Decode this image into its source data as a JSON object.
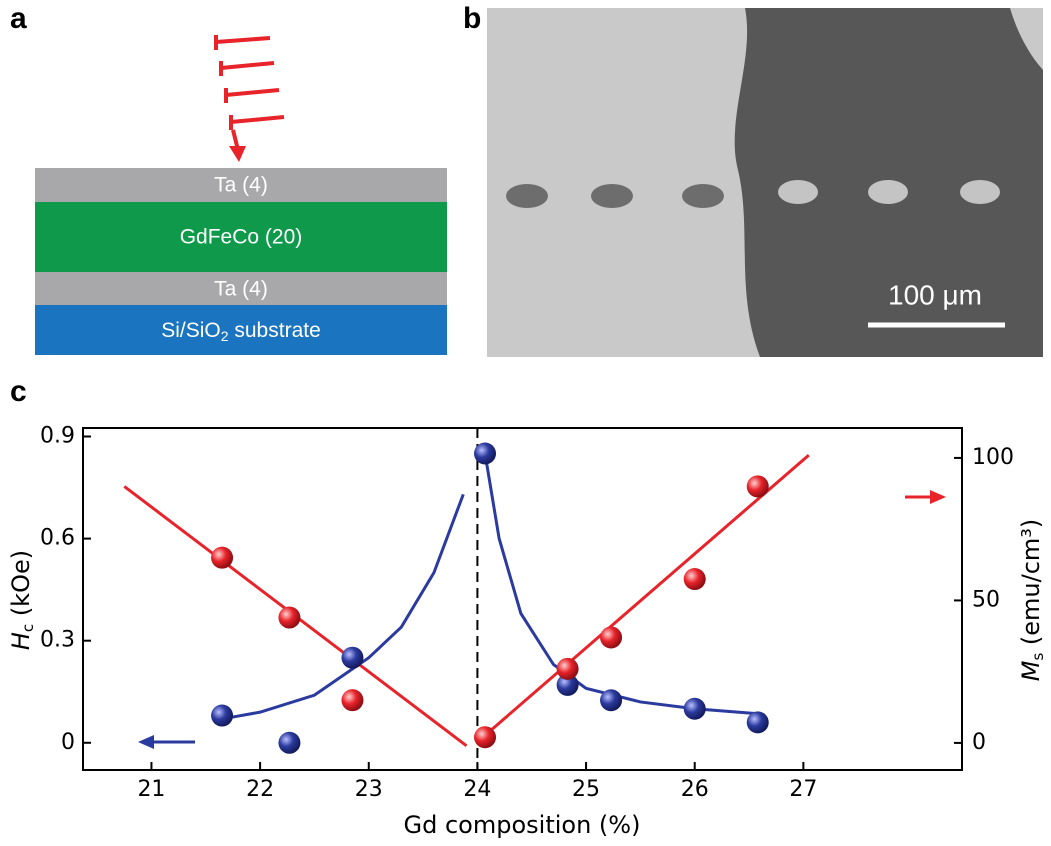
{
  "panels": {
    "a": {
      "label": "a",
      "layers": [
        "Ta (4)",
        "GdFeCo (20)",
        "Ta (4)"
      ],
      "substrate": {
        "main": "Si/SiO",
        "sub": "2",
        "rest": " substrate"
      }
    },
    "b": {
      "label": "b",
      "scale_bar": "100 μm"
    },
    "c": {
      "label": "c"
    }
  },
  "chart_data": {
    "type": "scatter",
    "xlabel": "Gd composition (%)",
    "ylabel": {
      "symbol": "H",
      "sub": "c",
      "unit": " (kOe)"
    },
    "y2label": {
      "symbol": "M",
      "sub": "s",
      "unit": " (emu/cm³)"
    },
    "xlim": [
      20.37,
      28.46
    ],
    "xticks": [
      21,
      22,
      23,
      24,
      25,
      26,
      27
    ],
    "ylim": [
      -0.08,
      0.925
    ],
    "yticks": [
      0,
      0.3,
      0.6,
      0.9
    ],
    "y2lim": [
      -9.5,
      110.5
    ],
    "y2ticks": [
      0,
      50,
      100
    ],
    "vline": 24,
    "series": [
      {
        "style": "markers",
        "color": "#2b3a9e",
        "axis": "y",
        "x": [
          21.65,
          22.27,
          22.85,
          24.07,
          24.83,
          25.23,
          26.0,
          26.58
        ],
        "values": [
          0.08,
          0.0,
          0.25,
          0.85,
          0.17,
          0.125,
          0.1,
          0.06
        ]
      },
      {
        "style": "markers",
        "color": "#e8232a",
        "axis": "y2",
        "x": [
          21.65,
          22.27,
          22.85,
          24.07,
          24.83,
          25.23,
          26.0,
          26.58
        ],
        "values": [
          65,
          44,
          15,
          2,
          26,
          37,
          57.5,
          90
        ]
      },
      {
        "style": "line",
        "color": "#2b3a9e",
        "axis": "y",
        "x": [
          21.65,
          22.0,
          22.5,
          23.0,
          23.3,
          23.6,
          23.87
        ],
        "values": [
          0.07,
          0.09,
          0.14,
          0.25,
          0.34,
          0.5,
          0.73
        ]
      },
      {
        "style": "line",
        "color": "#2b3a9e",
        "axis": "y",
        "x": [
          24.07,
          24.2,
          24.4,
          24.7,
          25.0,
          25.5,
          26.0,
          26.6
        ],
        "values": [
          0.85,
          0.6,
          0.38,
          0.23,
          0.16,
          0.12,
          0.1,
          0.085
        ]
      },
      {
        "style": "line",
        "color": "#e8232a",
        "axis": "y2",
        "x": [
          20.75,
          23.9
        ],
        "values": [
          90,
          -1
        ]
      },
      {
        "style": "line",
        "color": "#e8232a",
        "axis": "y2",
        "x": [
          24.05,
          27.05
        ],
        "values": [
          2,
          101
        ]
      }
    ]
  }
}
